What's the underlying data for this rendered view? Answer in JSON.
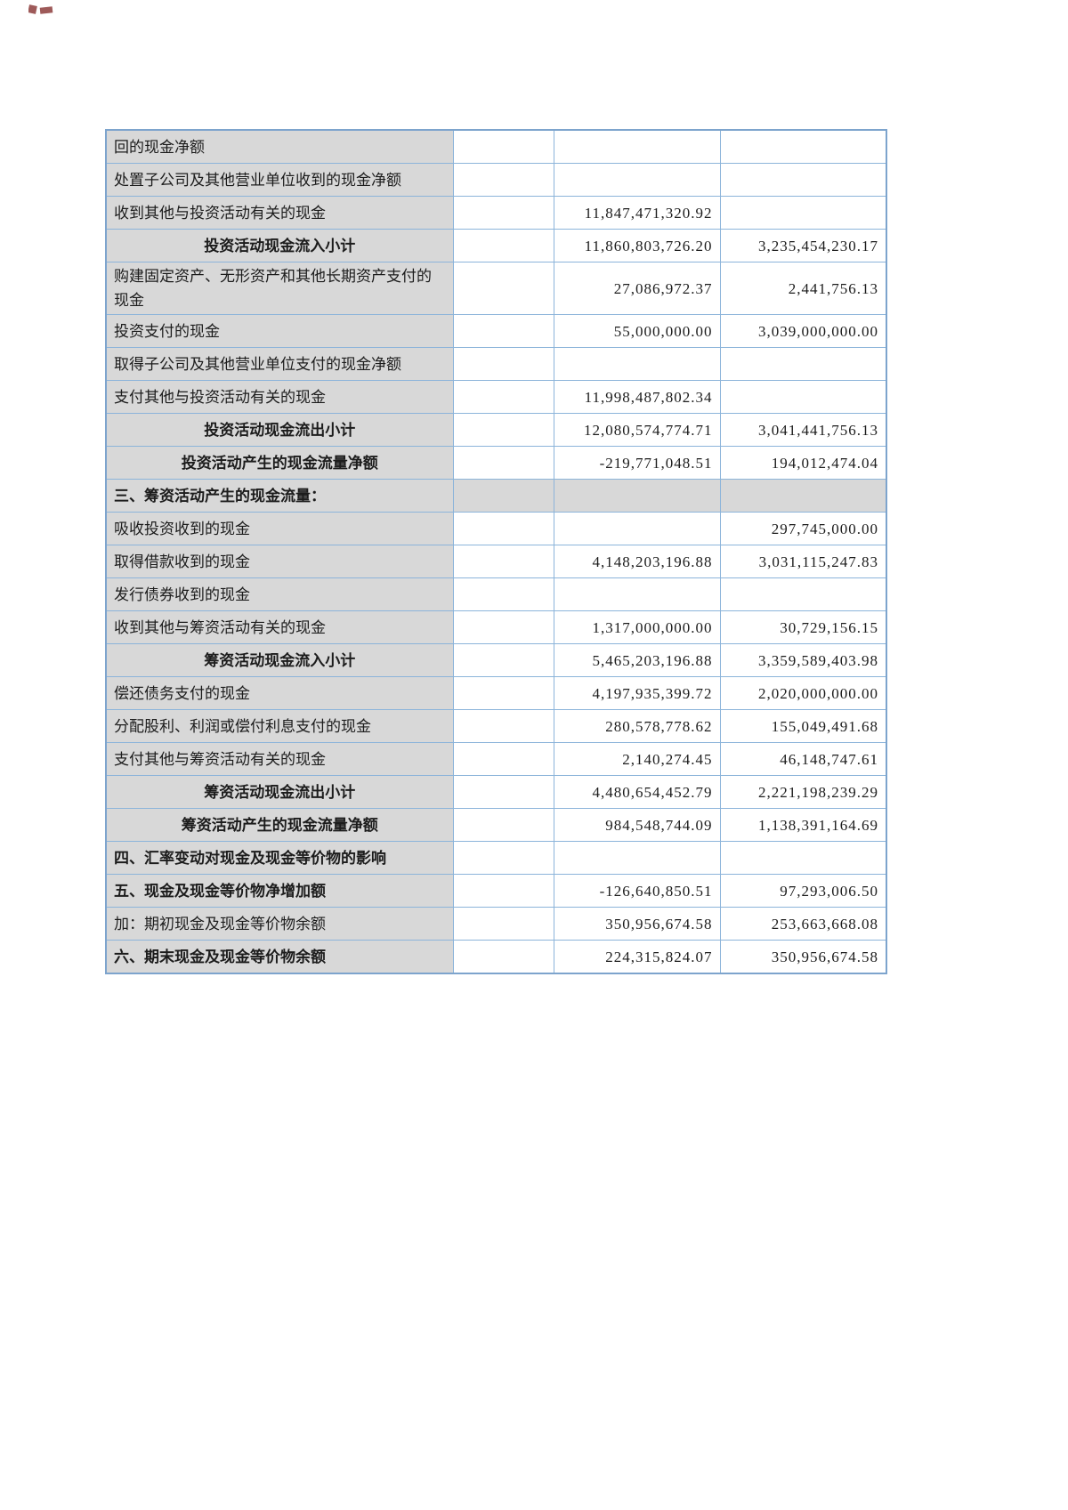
{
  "page": {
    "corner_mark_color": "#7d2321"
  },
  "table": {
    "colors": {
      "border_inner": "#8cb4da",
      "border_outer": "#7da4cd",
      "row_label_fill": "#d8d8d8",
      "section_row_fill": "#d8d8d8",
      "text": "#1c1c1c"
    },
    "rows": [
      {
        "style": "normal",
        "label": "回的现金净额",
        "v1": "",
        "v2": ""
      },
      {
        "style": "normal",
        "label": "处置子公司及其他营业单位收到的现金净额",
        "v1": "",
        "v2": ""
      },
      {
        "style": "normal",
        "label": "收到其他与投资活动有关的现金",
        "v1": "11,847,471,320.92",
        "v2": ""
      },
      {
        "style": "subtotal",
        "label": "投资活动现金流入小计",
        "v1": "11,860,803,726.20",
        "v2": "3,235,454,230.17"
      },
      {
        "style": "normal",
        "label": "购建固定资产、无形资产和其他长期资产支付的现金",
        "v1": "27,086,972.37",
        "v2": "2,441,756.13"
      },
      {
        "style": "normal",
        "label": "投资支付的现金",
        "v1": "55,000,000.00",
        "v2": "3,039,000,000.00"
      },
      {
        "style": "normal",
        "label": "取得子公司及其他营业单位支付的现金净额",
        "v1": "",
        "v2": ""
      },
      {
        "style": "normal",
        "label": "支付其他与投资活动有关的现金",
        "v1": "11,998,487,802.34",
        "v2": ""
      },
      {
        "style": "subtotal",
        "label": "投资活动现金流出小计",
        "v1": "12,080,574,774.71",
        "v2": "3,041,441,756.13"
      },
      {
        "style": "subtotal",
        "label": "投资活动产生的现金流量净额",
        "v1": "-219,771,048.51",
        "v2": "194,012,474.04"
      },
      {
        "style": "section",
        "label": "三、筹资活动产生的现金流量：",
        "v1": "",
        "v2": ""
      },
      {
        "style": "normal",
        "label": "吸收投资收到的现金",
        "v1": "",
        "v2": "297,745,000.00"
      },
      {
        "style": "normal",
        "label": "取得借款收到的现金",
        "v1": "4,148,203,196.88",
        "v2": "3,031,115,247.83"
      },
      {
        "style": "normal",
        "label": "发行债券收到的现金",
        "v1": "",
        "v2": ""
      },
      {
        "style": "normal",
        "label": "收到其他与筹资活动有关的现金",
        "v1": "1,317,000,000.00",
        "v2": "30,729,156.15"
      },
      {
        "style": "subtotal",
        "label": "筹资活动现金流入小计",
        "v1": "5,465,203,196.88",
        "v2": "3,359,589,403.98"
      },
      {
        "style": "normal",
        "label": "偿还债务支付的现金",
        "v1": "4,197,935,399.72",
        "v2": "2,020,000,000.00"
      },
      {
        "style": "normal",
        "label": "分配股利、利润或偿付利息支付的现金",
        "v1": "280,578,778.62",
        "v2": "155,049,491.68"
      },
      {
        "style": "normal",
        "label": "支付其他与筹资活动有关的现金",
        "v1": "2,140,274.45",
        "v2": "46,148,747.61"
      },
      {
        "style": "subtotal",
        "label": "筹资活动现金流出小计",
        "v1": "4,480,654,452.79",
        "v2": "2,221,198,239.29"
      },
      {
        "style": "subtotal",
        "label": "筹资活动产生的现金流量净额",
        "v1": "984,548,744.09",
        "v2": "1,138,391,164.69"
      },
      {
        "style": "bold",
        "label": "四、汇率变动对现金及现金等价物的影响",
        "v1": "",
        "v2": ""
      },
      {
        "style": "bold",
        "label": "五、现金及现金等价物净增加额",
        "v1": "-126,640,850.51",
        "v2": "97,293,006.50"
      },
      {
        "style": "normal",
        "label": "加：期初现金及现金等价物余额",
        "v1": "350,956,674.58",
        "v2": "253,663,668.08"
      },
      {
        "style": "bold",
        "label": "六、期末现金及现金等价物余额",
        "v1": "224,315,824.07",
        "v2": "350,956,674.58"
      }
    ]
  }
}
